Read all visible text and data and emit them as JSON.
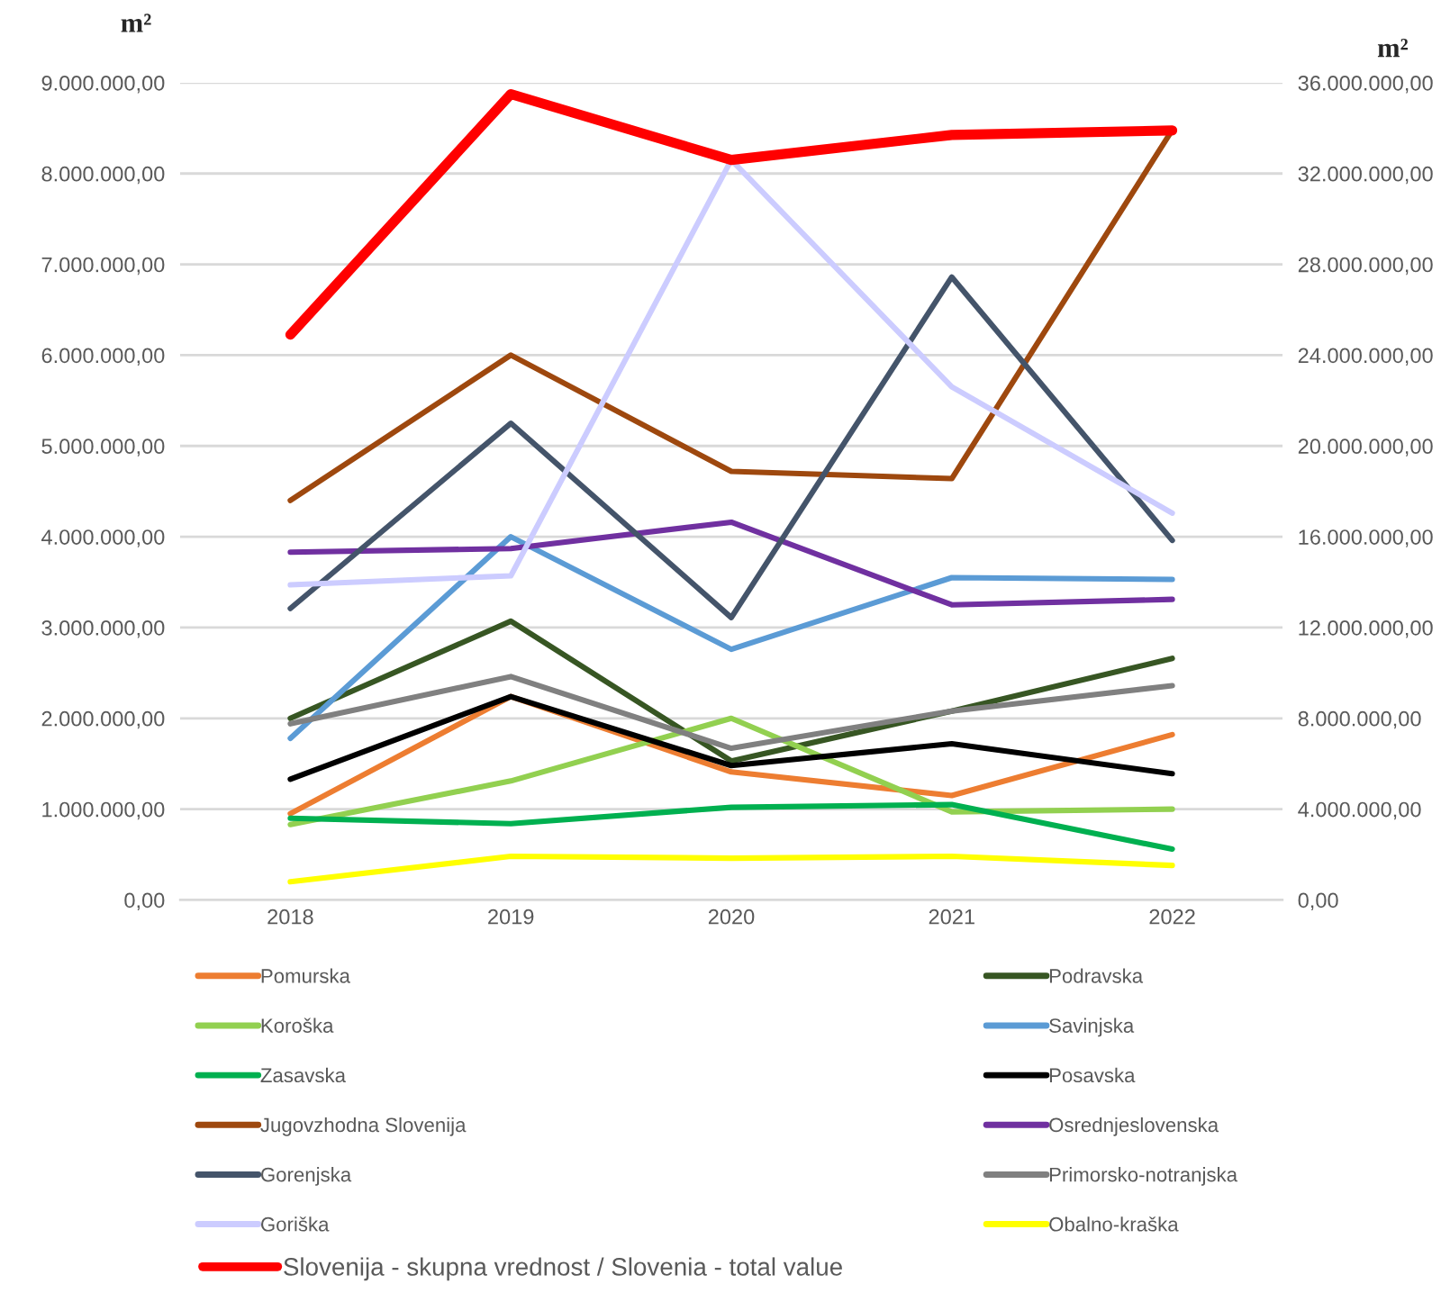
{
  "chart_data": {
    "type": "line",
    "ylabel": "m²",
    "y2label": "m²",
    "categories": [
      "2018",
      "2019",
      "2020",
      "2021",
      "2022"
    ],
    "ylim": [
      0,
      9000000
    ],
    "yticks": [
      {
        "value": 0,
        "label": "0,00"
      },
      {
        "value": 1000000,
        "label": "1.000.000,00"
      },
      {
        "value": 2000000,
        "label": "2.000.000,00"
      },
      {
        "value": 3000000,
        "label": "3.000.000,00"
      },
      {
        "value": 4000000,
        "label": "4.000.000,00"
      },
      {
        "value": 5000000,
        "label": "5.000.000,00"
      },
      {
        "value": 6000000,
        "label": "6.000.000,00"
      },
      {
        "value": 7000000,
        "label": "7.000.000,00"
      },
      {
        "value": 8000000,
        "label": "8.000.000,00"
      },
      {
        "value": 9000000,
        "label": "9.000.000,00"
      }
    ],
    "y2lim": [
      0,
      36000000
    ],
    "y2ticks": [
      {
        "value": 0,
        "label": "0,00"
      },
      {
        "value": 4000000,
        "label": "4.000.000,00"
      },
      {
        "value": 8000000,
        "label": "8.000.000,00"
      },
      {
        "value": 12000000,
        "label": "12.000.000,00"
      },
      {
        "value": 16000000,
        "label": "16.000.000,00"
      },
      {
        "value": 20000000,
        "label": "20.000.000,00"
      },
      {
        "value": 24000000,
        "label": "24.000.000,00"
      },
      {
        "value": 28000000,
        "label": "28.000.000,00"
      },
      {
        "value": 32000000,
        "label": "32.000.000,00"
      },
      {
        "value": 36000000,
        "label": "36.000.000,00"
      }
    ],
    "grid": "y",
    "legend": "bottom",
    "marker": "none",
    "line_style": "solid",
    "series": [
      {
        "name": "Pomurska",
        "color": "#ed7d31",
        "values": [
          950000,
          2240000,
          1410000,
          1150000,
          1820000
        ]
      },
      {
        "name": "Podravska",
        "color": "#375623",
        "values": [
          2000000,
          3070000,
          1530000,
          2080000,
          2660000
        ]
      },
      {
        "name": "Koroška",
        "color": "#92d050",
        "values": [
          830000,
          1310000,
          2000000,
          970000,
          1000000
        ]
      },
      {
        "name": "Savinjska",
        "color": "#5b9bd5",
        "values": [
          1780000,
          4000000,
          2760000,
          3550000,
          3530000
        ]
      },
      {
        "name": "Zasavska",
        "color": "#00b050",
        "values": [
          900000,
          840000,
          1020000,
          1050000,
          560000
        ]
      },
      {
        "name": "Posavska",
        "color": "#000000",
        "values": [
          1330000,
          2240000,
          1480000,
          1720000,
          1390000
        ]
      },
      {
        "name": "Jugovzhodna Slovenija",
        "color": "#9e480e",
        "values": [
          4400000,
          6000000,
          4720000,
          4640000,
          8480000
        ]
      },
      {
        "name": "Osrednjeslovenska",
        "color": "#7030a0",
        "values": [
          3830000,
          3870000,
          4160000,
          3250000,
          3310000
        ]
      },
      {
        "name": "Gorenjska",
        "color": "#44546a",
        "values": [
          3210000,
          5250000,
          3110000,
          6860000,
          3960000
        ]
      },
      {
        "name": "Primorsko-notranjska",
        "color": "#808080",
        "values": [
          1940000,
          2460000,
          1670000,
          2080000,
          2360000
        ]
      },
      {
        "name": "Goriška",
        "color": "#ccccff",
        "values": [
          3470000,
          3570000,
          8150000,
          5650000,
          4260000
        ]
      },
      {
        "name": "Obalno-kraška",
        "color": "#ffff00",
        "values": [
          200000,
          480000,
          460000,
          480000,
          380000
        ]
      },
      {
        "name": "Slovenija - skupna vrednost / Slovenia - total value",
        "color": "#ff0000",
        "axis": "y2",
        "values": [
          24900000,
          35500000,
          32600000,
          33700000,
          33900000
        ]
      }
    ]
  }
}
